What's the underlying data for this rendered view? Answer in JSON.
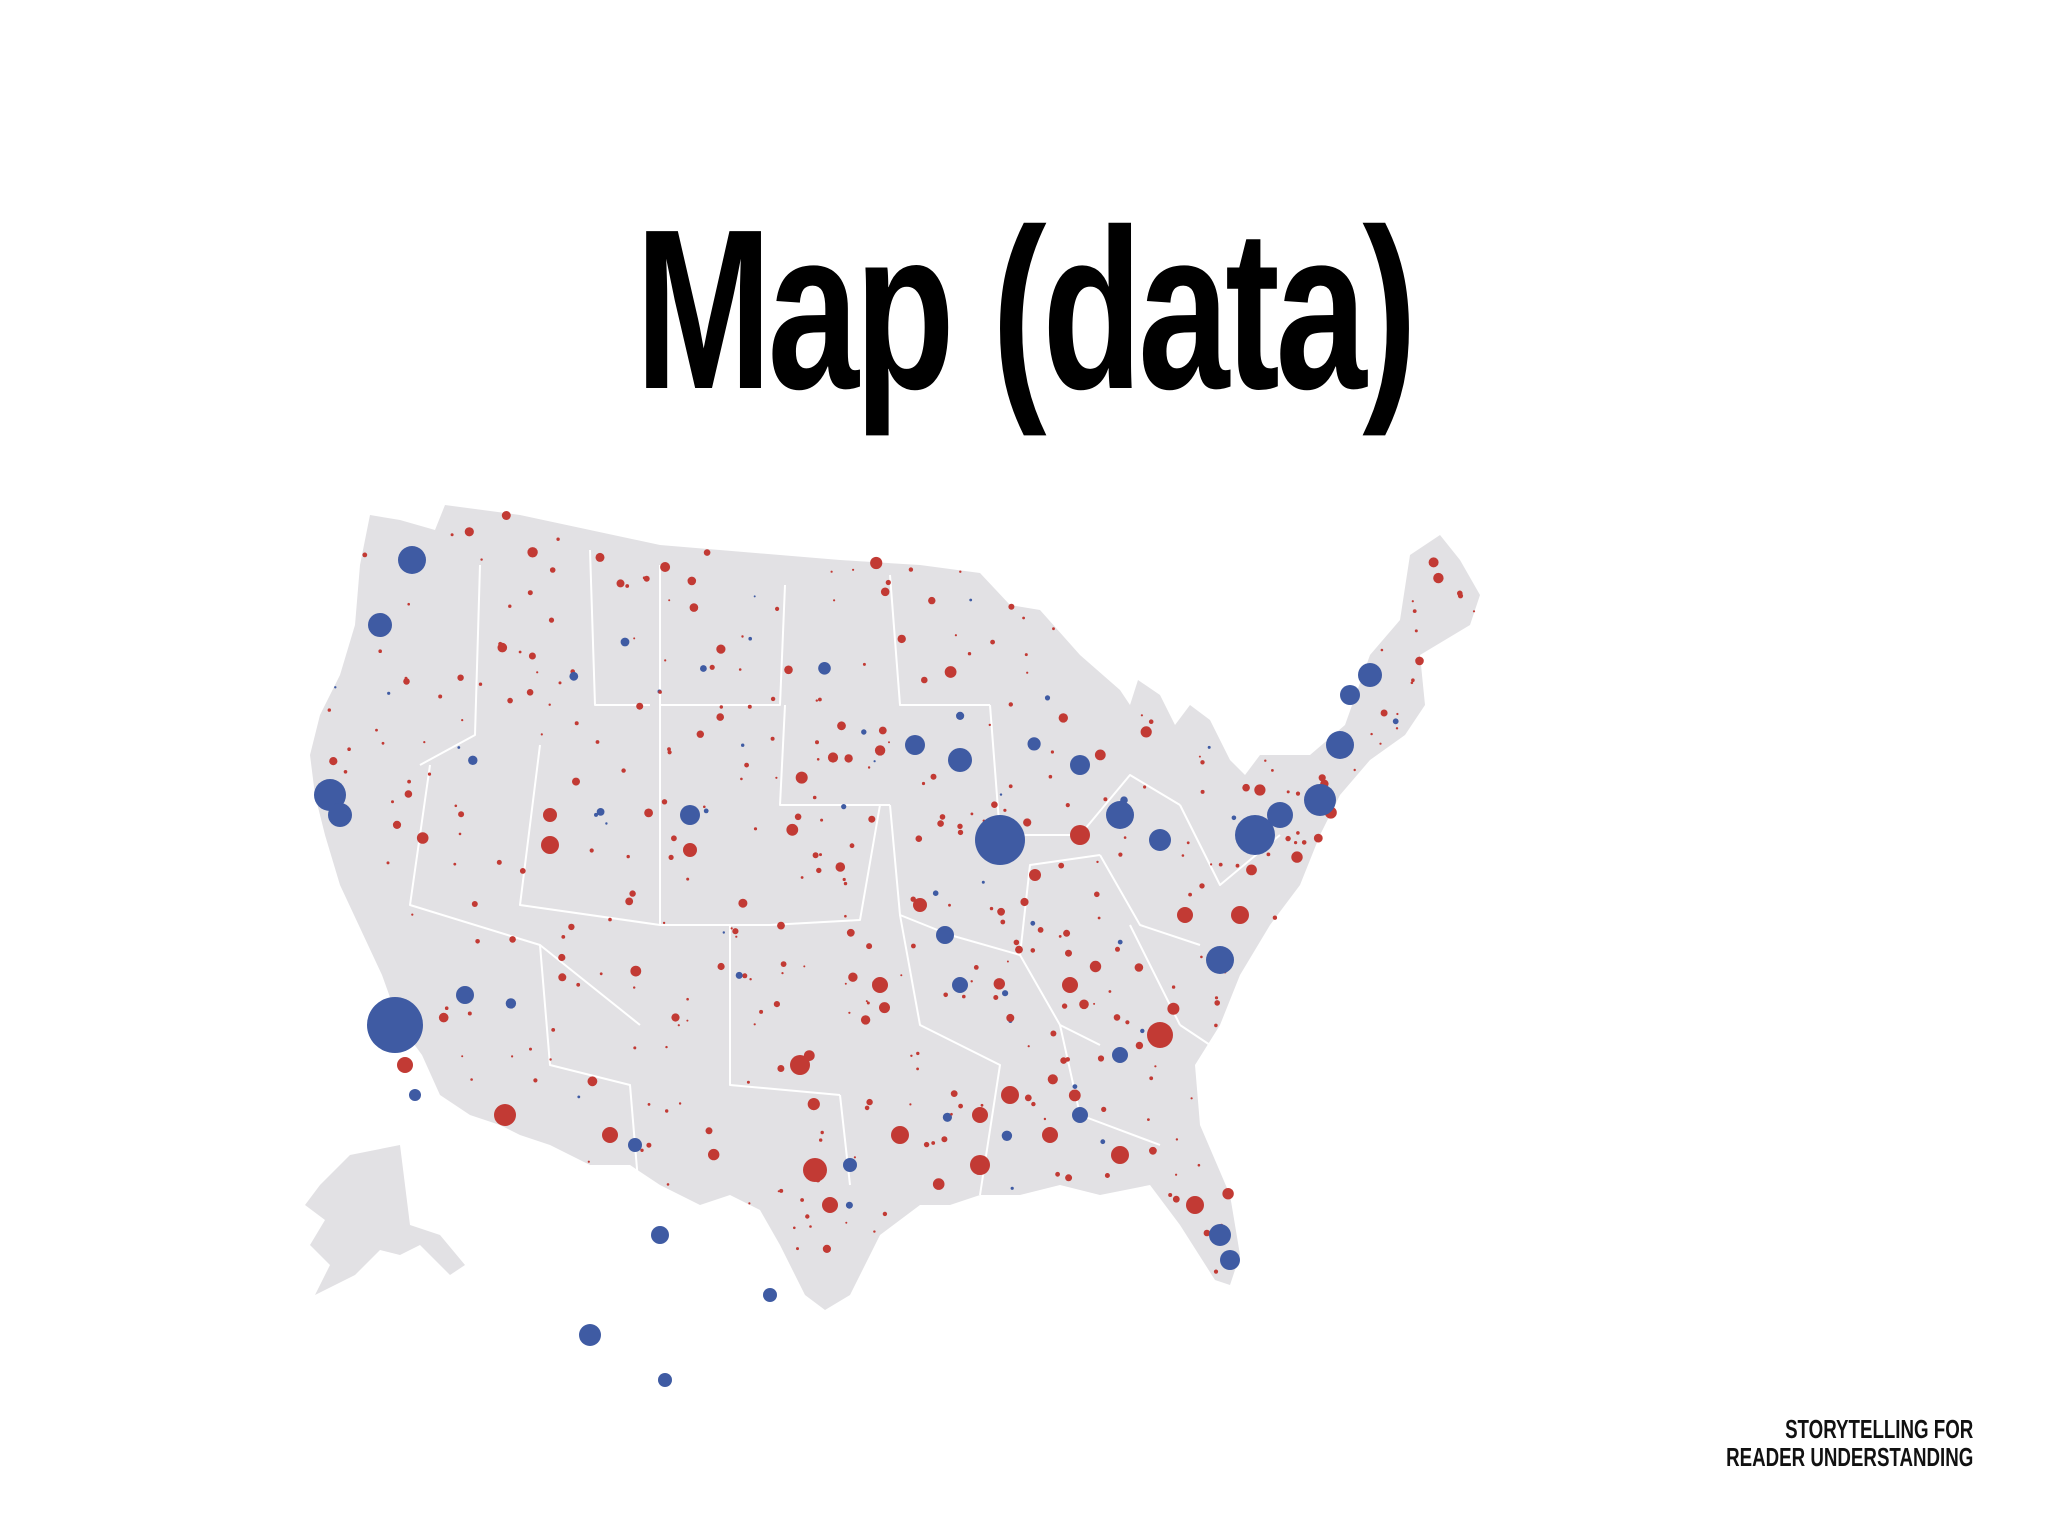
{
  "slide": {
    "title": "Map (data)"
  },
  "footer": {
    "line1": "STORYTELLING FOR",
    "line2": "READER UNDERSTANDING"
  },
  "map": {
    "region": "United States",
    "colors": {
      "land": "#e2e1e4",
      "borders": "#ffffff",
      "republican": "#c23a34",
      "democrat": "#3f5ba3"
    }
  }
}
